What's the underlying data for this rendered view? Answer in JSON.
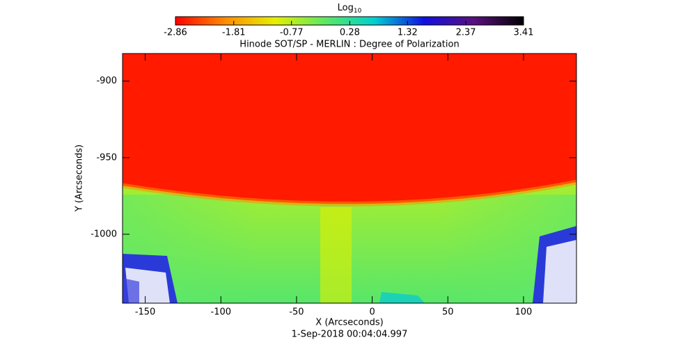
{
  "chart_data": {
    "type": "image",
    "title": "Hinode SOT/SP - MERLIN : Degree of Polarization",
    "colorbar": {
      "label": "Log",
      "label_sub": "10",
      "lim": [
        -2.86,
        3.41
      ],
      "ticks": [
        -2.86,
        -1.81,
        -0.77,
        0.28,
        1.32,
        2.37,
        3.41
      ],
      "colors": [
        "#ff0000",
        "#ff8c00",
        "#e6f000",
        "#5ee860",
        "#00d0d0",
        "#1010e0",
        "#5a1080",
        "#000000"
      ]
    },
    "xlabel": "X (Arcseconds)",
    "ylabel": "Y (Arcseconds)",
    "xlim": [
      -165,
      135
    ],
    "ylim": [
      -1045,
      -882
    ],
    "xticks": [
      -150,
      -100,
      -50,
      0,
      50,
      100
    ],
    "yticks": [
      -900,
      -950,
      -1000
    ],
    "date": "1-Sep-2018 00:04:04.997"
  }
}
